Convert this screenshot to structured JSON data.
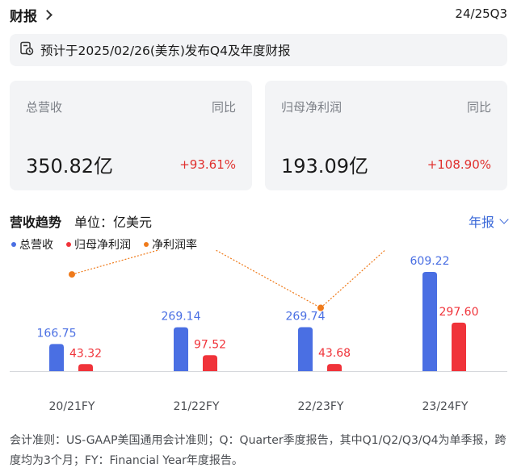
{
  "header": {
    "title": "财报",
    "period": "24/25Q3"
  },
  "notice": {
    "text": "预计于2025/02/26(美东)发布Q4及年度财报"
  },
  "cards": [
    {
      "label": "总营收",
      "yoy_label": "同比",
      "value": "350.82亿",
      "change": "+93.61%"
    },
    {
      "label": "归母净利润",
      "yoy_label": "同比",
      "value": "193.09亿",
      "change": "+108.90%"
    }
  ],
  "trend": {
    "title": "营收趋势",
    "unit": "单位：亿美元",
    "period_select": "年报"
  },
  "colors": {
    "revenue": "#4a6fe3",
    "net_profit": "#f0333a",
    "margin": "#ef7a1a",
    "accent": "#3a68d8"
  },
  "chart_data": {
    "type": "bar",
    "categories": [
      "20/21FY",
      "21/22FY",
      "22/23FY",
      "23/24FY"
    ],
    "series": [
      {
        "name": "总营收",
        "type": "bar",
        "values": [
          166.75,
          269.14,
          269.74,
          609.22
        ],
        "labels": [
          "166.75",
          "269.14",
          "269.74",
          "609.22"
        ]
      },
      {
        "name": "归母净利润",
        "type": "bar",
        "values": [
          43.32,
          97.52,
          43.68,
          297.6
        ],
        "labels": [
          "43.32",
          "97.52",
          "43.68",
          "297.60"
        ]
      },
      {
        "name": "净利润率",
        "type": "line",
        "values": [
          25.98,
          36.23,
          16.19,
          48.85
        ]
      }
    ],
    "legend_position": "top-left",
    "grid": false
  },
  "footnote": "会计准则：US-GAAP美国通用会计准则；Q：Quarter季度报告，其中Q1/Q2/Q3/Q4为单季报，跨度均为3个月；FY：Financial Year年度报告。"
}
